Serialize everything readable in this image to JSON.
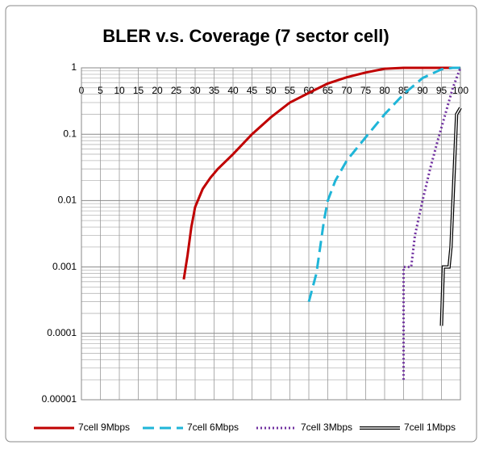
{
  "chart_data": {
    "type": "line",
    "title": "BLER v.s. Coverage (7 sector cell)",
    "xlim": [
      0,
      100
    ],
    "xticks": [
      0,
      5,
      10,
      15,
      20,
      25,
      30,
      35,
      40,
      45,
      50,
      55,
      60,
      65,
      70,
      75,
      80,
      85,
      90,
      95,
      100
    ],
    "ylim": [
      1e-05,
      1
    ],
    "yticks": [
      1,
      0.1,
      0.01,
      0.001,
      0.0001,
      1e-05
    ],
    "y_log": true,
    "grid": true,
    "legend": "bottom",
    "series": [
      {
        "name": "7cell 9Mbps",
        "color": "#c00000",
        "style": "solid",
        "x": [
          27,
          28,
          29,
          30,
          32,
          34,
          36,
          40,
          45,
          50,
          55,
          60,
          65,
          70,
          75,
          80,
          85,
          100
        ],
        "values": [
          0.00065,
          0.0015,
          0.004,
          0.008,
          0.015,
          0.022,
          0.03,
          0.05,
          0.1,
          0.18,
          0.3,
          0.42,
          0.58,
          0.72,
          0.85,
          0.97,
          1,
          1
        ]
      },
      {
        "name": "7cell 6Mbps",
        "color": "#1fb5d8",
        "style": "dashed",
        "x": [
          60,
          62,
          63,
          64,
          65,
          67,
          70,
          75,
          80,
          85,
          90,
          95,
          98,
          100
        ],
        "values": [
          0.0003,
          0.0008,
          0.002,
          0.005,
          0.01,
          0.02,
          0.04,
          0.09,
          0.2,
          0.4,
          0.7,
          0.95,
          1,
          1
        ]
      },
      {
        "name": "7cell 3Mbps",
        "color": "#7030a0",
        "style": "dotted",
        "x": [
          85,
          85,
          86,
          87,
          88,
          90,
          92,
          94,
          96,
          98,
          100
        ],
        "values": [
          2e-05,
          0.001,
          0.001,
          0.001,
          0.003,
          0.01,
          0.03,
          0.08,
          0.2,
          0.5,
          1
        ]
      },
      {
        "name": "7cell 1Mbps",
        "color": "#000000",
        "style": "double",
        "x": [
          95,
          95.5,
          97,
          97.5,
          99,
          100
        ],
        "values": [
          0.00013,
          0.001,
          0.001,
          0.002,
          0.2,
          0.25
        ]
      }
    ]
  }
}
